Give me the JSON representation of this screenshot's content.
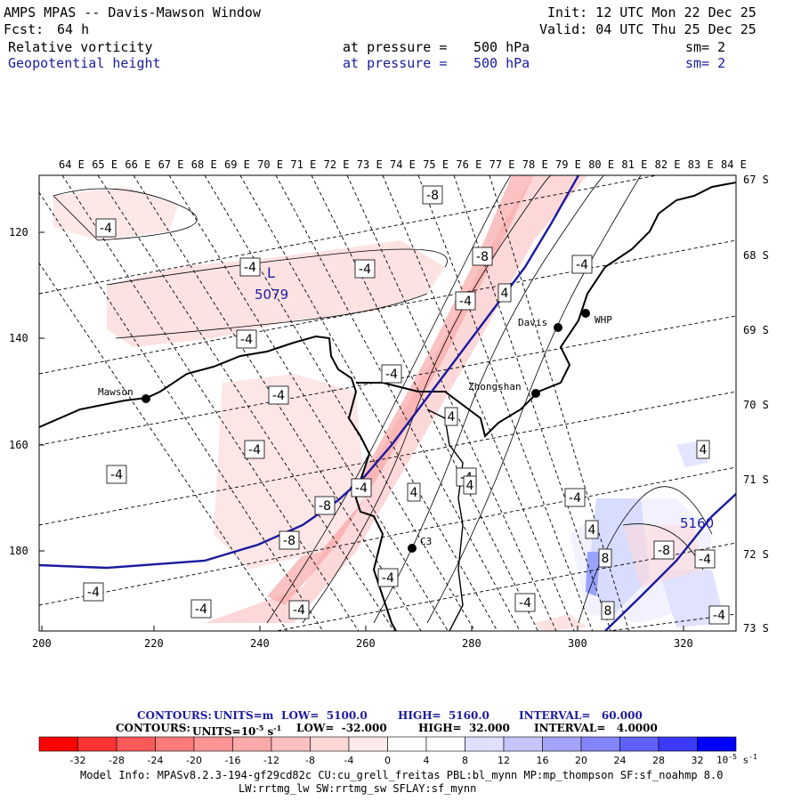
{
  "header": {
    "title": "AMPS MPAS -- Davis-Mawson Window",
    "fcst_label": "Fcst:",
    "fcst_value": "64 h",
    "init": "Init: 12 UTC Mon 22 Dec 25",
    "valid": "Valid: 04 UTC Thu 25 Dec 25",
    "fields": [
      {
        "name": "Relative vorticity",
        "level_label": "at pressure =",
        "level": "500 hPa",
        "smooth": "sm= 2"
      },
      {
        "name": "Geopotential height",
        "level_label": "at pressure =",
        "level": "500 hPa",
        "smooth": "sm= 2"
      }
    ]
  },
  "map": {
    "top_lon_labels": [
      "64 E",
      "65 E",
      "66 E",
      "67 E",
      "68 E",
      "69 E",
      "70 E",
      "71 E",
      "72 E",
      "73 E",
      "74 E",
      "75 E",
      "76 E",
      "77 E",
      "78 E",
      "79 E",
      "80 E",
      "81 E",
      "82 E",
      "83 E",
      "84 E"
    ],
    "right_lat_labels": [
      "67 S",
      "68 S",
      "69 S",
      "70 S",
      "71 S",
      "72 S",
      "73 S"
    ],
    "left_axis_ticks": [
      "120",
      "140",
      "160",
      "180"
    ],
    "bottom_axis_ticks": [
      "200",
      "220",
      "240",
      "260",
      "280",
      "300",
      "320"
    ],
    "stations": [
      {
        "name": "Mawson"
      },
      {
        "name": "Zhongshan"
      },
      {
        "name": "Davis"
      },
      {
        "name": "WHP"
      },
      {
        "name": "C3"
      }
    ],
    "low_marker": {
      "label": "L",
      "value": "5079"
    },
    "height_label_2": "5160",
    "vorticity_labels": [
      "-8",
      "-8",
      "-8",
      "-8",
      "-4",
      "-4",
      "-4",
      "-4",
      "-4",
      "-4",
      "-4",
      "-4",
      "-4",
      "-4",
      "-4",
      "-4",
      "-4",
      "-4",
      "-4",
      "-4",
      "-4",
      "-4",
      "-4",
      "-4",
      "4",
      "4",
      "4",
      "4",
      "4",
      "4",
      "8",
      "8",
      "-8"
    ],
    "colors": {
      "contour_height": "#1a1aa0",
      "coast": "#000000",
      "grid": "#000000"
    }
  },
  "footer": {
    "contours_height": {
      "prefix": "CONTOURS:",
      "units": "UNITS=m",
      "low": "LOW=  5100.0",
      "high": "HIGH=  5160.0",
      "interval": "INTERVAL=   60.000"
    },
    "contours_vort": {
      "prefix": "CONTOURS:",
      "units": "UNITS=10",
      "units_exp": "-5",
      "units_suffix": "s",
      "units_suffix_exp": "-1",
      "low": "LOW=  -32.000",
      "high": "HIGH=  32.000",
      "interval": "INTERVAL=   4.0000"
    },
    "colorbar": {
      "colors": [
        "#ff0000",
        "#ff3c3c",
        "#ff6a6a",
        "#ff8c8c",
        "#ffa8a8",
        "#ffc4c4",
        "#ffdcdc",
        "#fff0f0",
        "#ffffff",
        "#ffffff",
        "#e6e6ff",
        "#c8c8ff",
        "#a8a8ff",
        "#8888ff",
        "#6464ff",
        "#3a3aff",
        "#0000ff"
      ],
      "tick_labels": [
        "-32",
        "-28",
        "-24",
        "-20",
        "-16",
        "-12",
        "-8",
        "-4",
        "0",
        "4",
        "8",
        "12",
        "16",
        "20",
        "24",
        "28",
        "32"
      ],
      "unit_text": "10",
      "unit_exp": "-5",
      "unit_suffix": "s",
      "unit_suffix_exp": "-1"
    },
    "model_info_1": "Model Info: MPASv8.2.3-194-gf29cd82c CU:cu_grell_freitas PBL:bl_mynn MP:mp_thompson SF:sf_noahmp 8.0",
    "model_info_2": "LW:rrtmg_lw SW:rrtmg_sw SFLAY:sf_mynn"
  }
}
